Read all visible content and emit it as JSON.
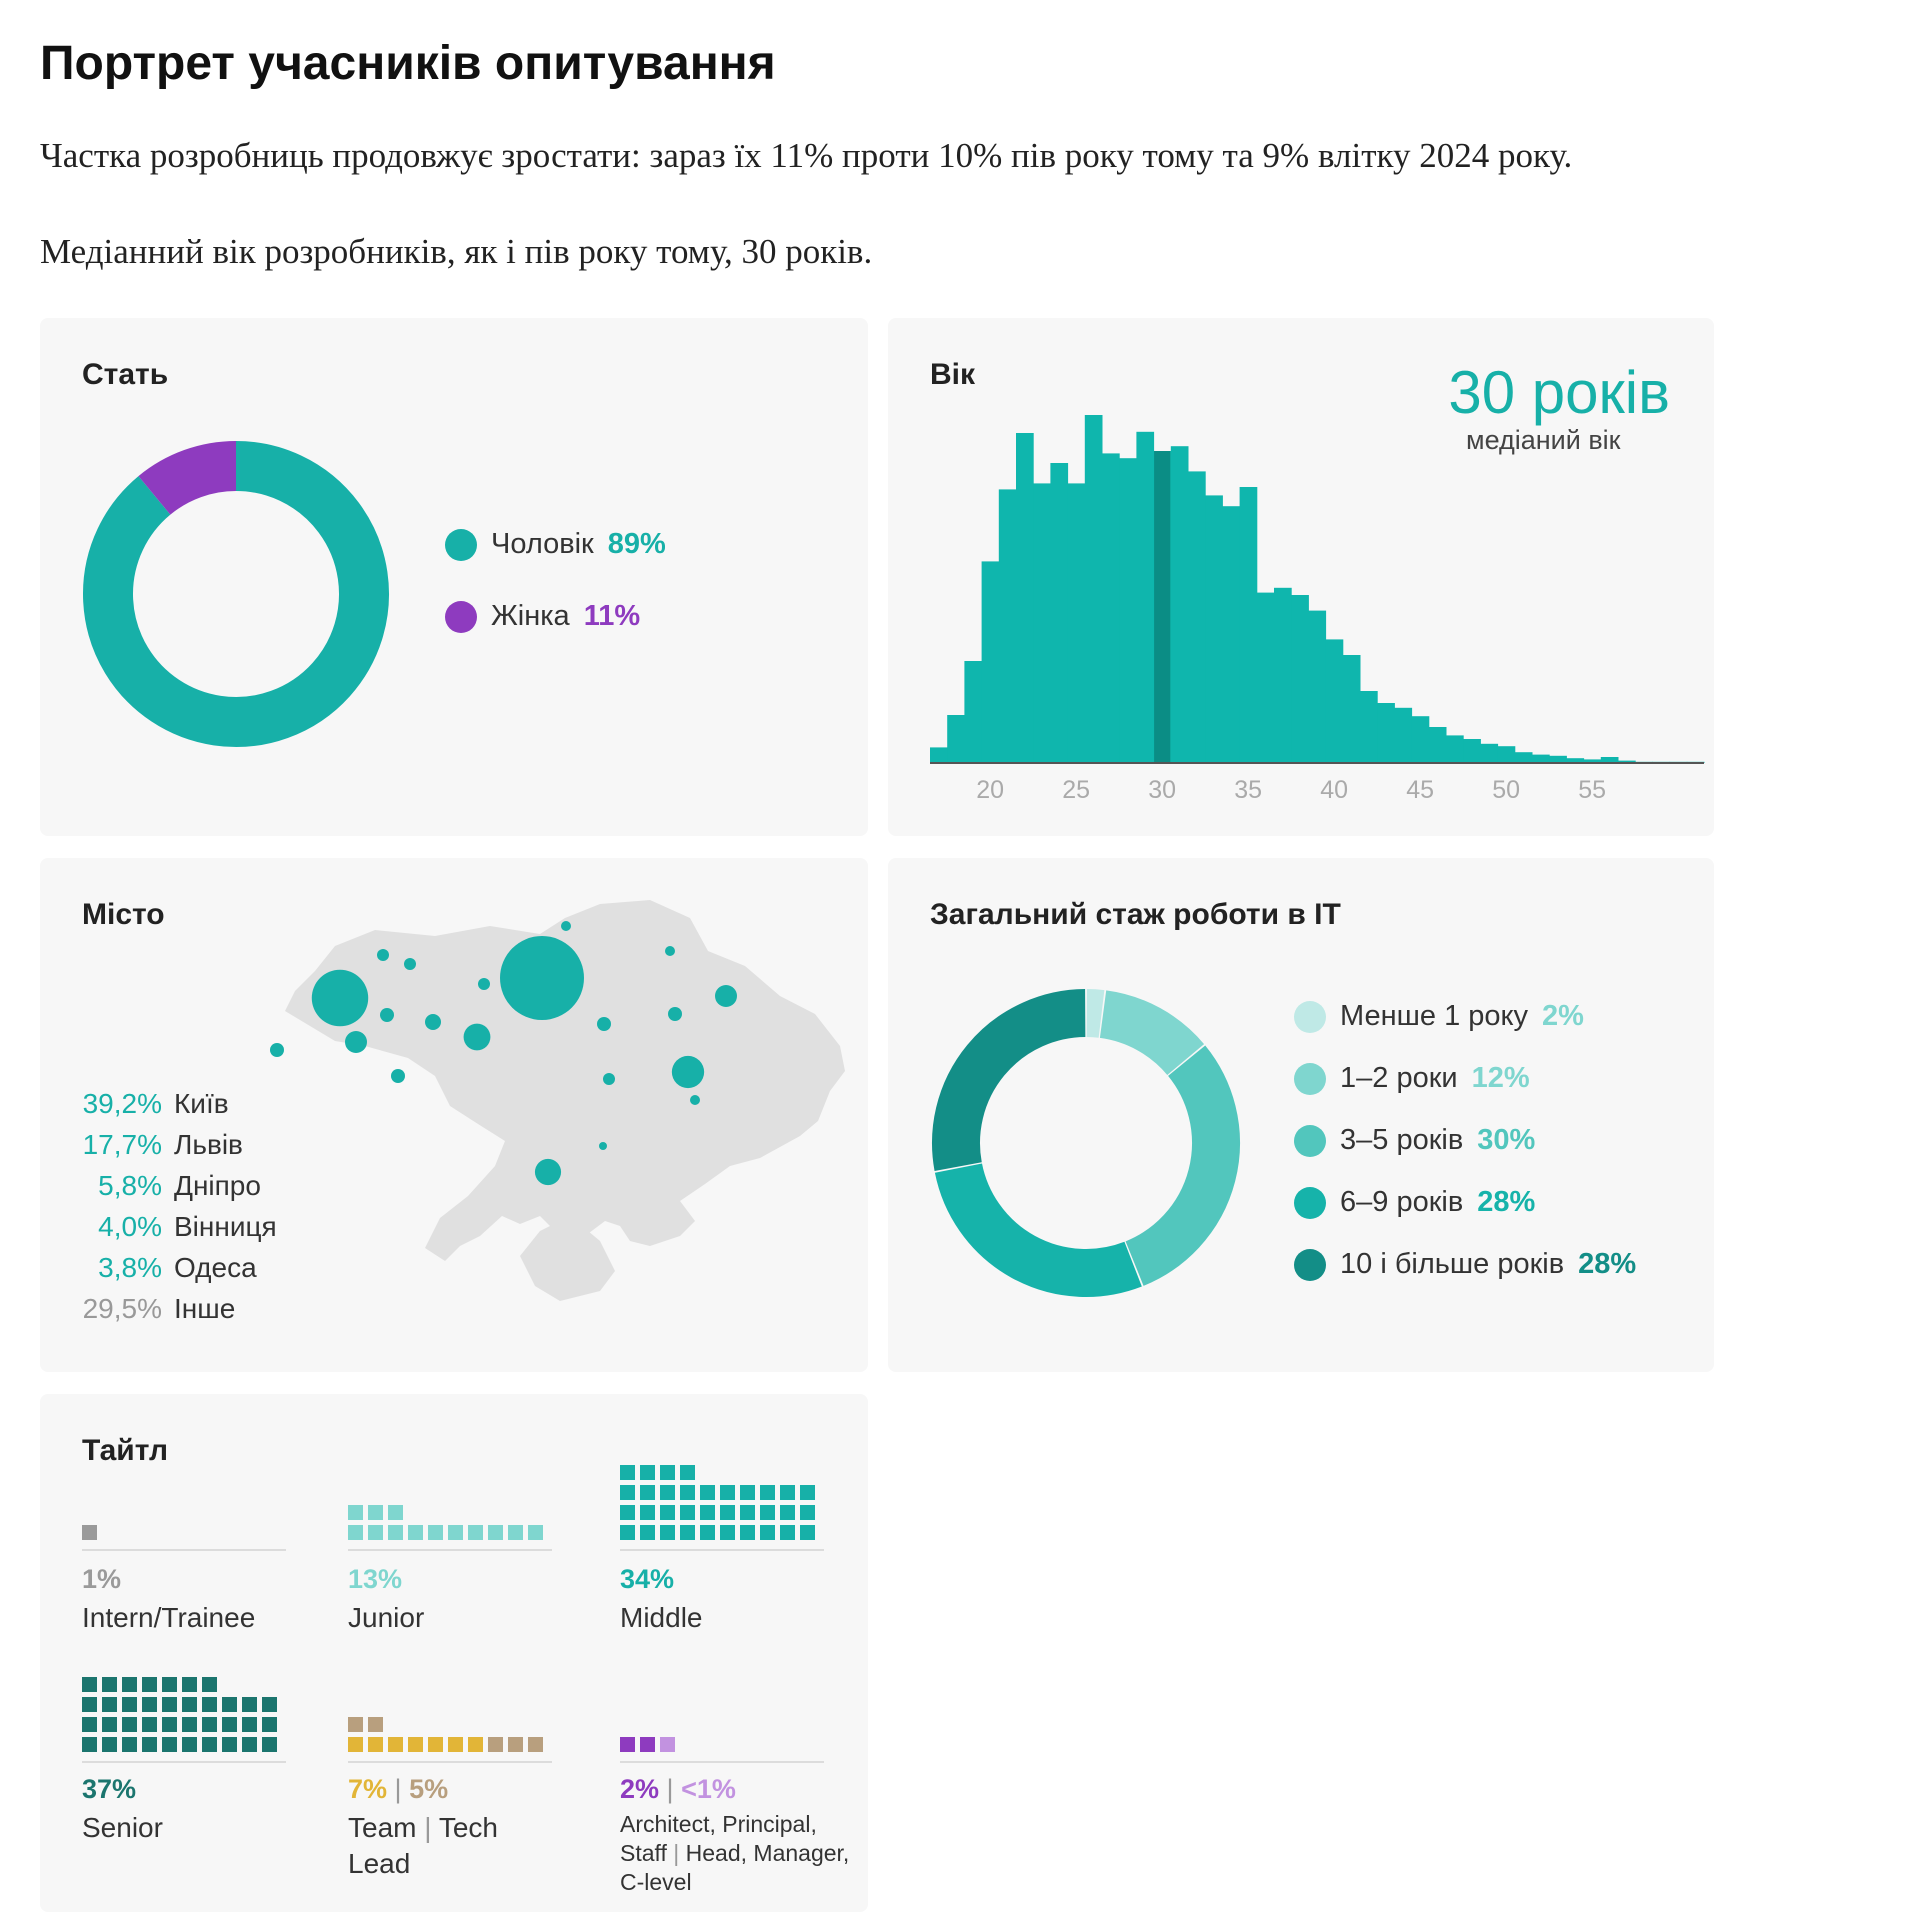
{
  "page": {
    "heading": "Портрет учасників опитування",
    "intro1": "Частка розробниць продовжує зростати: зараз їх 11% проти 10% пів року тому та 9% влітку 2024 року.",
    "intro2": "Медіанний вік розробників, як і пів року тому, 30 років."
  },
  "gender": {
    "title": "Стать",
    "legend": [
      {
        "label": "Чоловік",
        "value": "89%",
        "color": "#17b0a8"
      },
      {
        "label": "Жінка",
        "value": "11%",
        "color": "#8e3bbf"
      }
    ]
  },
  "age": {
    "title": "Вік",
    "median_value": "30 років",
    "median_label": "медіаний вік",
    "ticks": [
      "20",
      "25",
      "30",
      "35",
      "40",
      "45",
      "50",
      "55"
    ],
    "bar_color": "#0fb6ad",
    "median_color": "#0b8d85"
  },
  "city": {
    "title": "Місто",
    "rows": [
      {
        "pct": "39,2%",
        "name": "Київ",
        "color": "#17b0a8"
      },
      {
        "pct": "17,7%",
        "name": "Львів",
        "color": "#17b0a8"
      },
      {
        "pct": "5,8%",
        "name": "Дніпро",
        "color": "#17b0a8"
      },
      {
        "pct": "4,0%",
        "name": "Вінниця",
        "color": "#17b0a8"
      },
      {
        "pct": "3,8%",
        "name": "Одеса",
        "color": "#17b0a8"
      },
      {
        "pct": "29,5%",
        "name": "Інше",
        "color": "#999999"
      }
    ]
  },
  "experience": {
    "title": "Загальний стаж роботи в IT",
    "legend": [
      {
        "label": "Менше 1 року",
        "value": "2%",
        "color": "#bfe9e6"
      },
      {
        "label": "1–2 роки",
        "value": "12%",
        "color": "#7fd6cf"
      },
      {
        "label": "3–5 років",
        "value": "30%",
        "color": "#52c6bd"
      },
      {
        "label": "6–9 років",
        "value": "28%",
        "color": "#16b3aa"
      },
      {
        "label": "10 і більше років",
        "value": "28%",
        "color": "#138e87"
      }
    ]
  },
  "titles": {
    "title": "Тайтл",
    "items": [
      {
        "pct": "1%",
        "name": "Intern/Trainee",
        "color": "#9a9a9a"
      },
      {
        "pct": "13%",
        "name": "Junior",
        "color": "#7fd6cf"
      },
      {
        "pct": "34%",
        "name": "Middle",
        "color": "#17b0a8"
      },
      {
        "pct": "37%",
        "name": "Senior",
        "color": "#1b756e"
      },
      {
        "pct_a": "7%",
        "sep": "|",
        "pct_b": "5%",
        "name_a": "Team",
        "name_b": "Tech",
        "name_c": "Lead",
        "color_a": "#e2b537",
        "color_b": "#b89f7e"
      },
      {
        "pct_a": "2%",
        "sep": "|",
        "pct_b": "<1%",
        "name_a": "Architect, Principal,",
        "name_b": "Staff",
        "name_c": "Head, Manager,",
        "name_d": "C-level",
        "color_a": "#8e3bbf",
        "color_b": "#c292e0"
      }
    ]
  },
  "chart_data": [
    {
      "type": "pie",
      "title": "Стать",
      "categories": [
        "Чоловік",
        "Жінка"
      ],
      "values": [
        89,
        11
      ],
      "colors": [
        "#17b0a8",
        "#8e3bbf"
      ]
    },
    {
      "type": "bar",
      "title": "Вік",
      "x": [
        17,
        18,
        19,
        20,
        21,
        22,
        23,
        24,
        25,
        26,
        27,
        28,
        29,
        30,
        31,
        32,
        33,
        34,
        35,
        36,
        37,
        38,
        39,
        40,
        41,
        42,
        43,
        44,
        45,
        46,
        47,
        48,
        49,
        50,
        51,
        52,
        53,
        54,
        55,
        56,
        57,
        58,
        59,
        60,
        61
      ],
      "values": [
        1.3,
        4.0,
        8.5,
        16.8,
        22.8,
        27.5,
        23.3,
        25.0,
        23.3,
        29.0,
        25.8,
        25.4,
        27.6,
        26.0,
        26.4,
        24.3,
        22.3,
        21.4,
        23.0,
        14.2,
        14.6,
        14.0,
        12.7,
        10.3,
        9.0,
        6.0,
        5.0,
        4.6,
        3.9,
        3.0,
        2.3,
        2.0,
        1.6,
        1.4,
        0.9,
        0.7,
        0.6,
        0.4,
        0.3,
        0.5,
        0.2,
        0.1,
        0.1,
        0.1,
        0.1
      ],
      "xlabel": "",
      "ylabel": "",
      "median": 30,
      "ticks": [
        20,
        25,
        30,
        35,
        40,
        45,
        50,
        55
      ]
    },
    {
      "type": "pie",
      "title": "Загальний стаж роботи в IT",
      "categories": [
        "Менше 1 року",
        "1–2 роки",
        "3–5 років",
        "6–9 років",
        "10 і більше років"
      ],
      "values": [
        2,
        12,
        30,
        28,
        28
      ]
    },
    {
      "type": "bar",
      "title": "Тайтл",
      "categories": [
        "Intern/Trainee",
        "Junior",
        "Middle",
        "Senior",
        "Team Lead",
        "Tech Lead",
        "Architect, Principal, Staff",
        "Head, Manager, C-level"
      ],
      "values": [
        1,
        13,
        34,
        37,
        7,
        5,
        2,
        1
      ]
    },
    {
      "type": "scatter",
      "title": "Місто",
      "categories": [
        "Київ",
        "Львів",
        "Дніпро",
        "Вінниця",
        "Одеса",
        "Інше"
      ],
      "values": [
        39.2,
        17.7,
        5.8,
        4.0,
        3.8,
        29.5
      ]
    }
  ]
}
